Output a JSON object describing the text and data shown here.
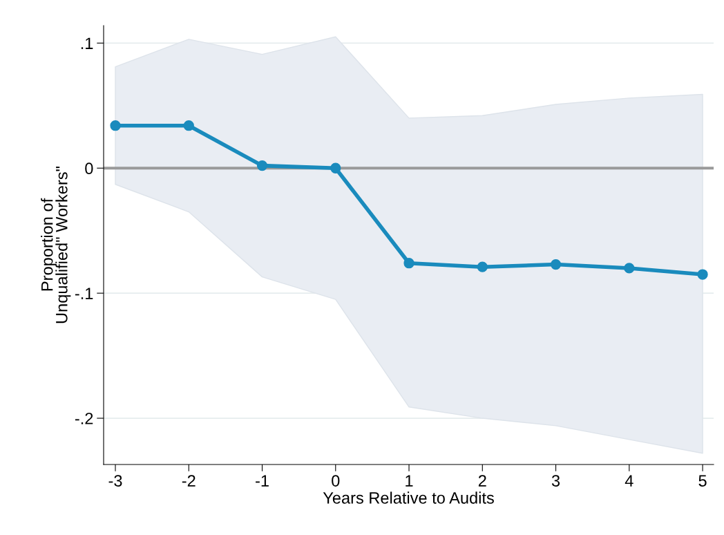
{
  "chart_data": {
    "type": "line",
    "xlabel": "Years Relative to Audits",
    "ylabel": "Proportion of\nUnqualified\" Workers\"",
    "x": [
      -3,
      -2,
      -1,
      0,
      1,
      2,
      3,
      4,
      5
    ],
    "series": [
      {
        "color": "#1a8bbd",
        "values": [
          0.034,
          0.034,
          0.002,
          0,
          -0.076,
          -0.079,
          -0.077,
          -0.08,
          -0.085
        ],
        "lower": [
          -0.013,
          -0.035,
          -0.087,
          -0.105,
          -0.191,
          -0.2,
          -0.206,
          -0.217,
          -0.228
        ],
        "upper": [
          0.081,
          0.103,
          0.091,
          0.105,
          0.04,
          0.042,
          0.051,
          0.056,
          0.059
        ]
      }
    ],
    "xlim": [
      -3.16,
      5.15
    ],
    "ylim": [
      -0.237,
      0.114
    ],
    "xticks": [
      -3,
      -2,
      -1,
      0,
      1,
      2,
      3,
      4,
      5
    ],
    "yticks": [
      {
        "value": -0.2,
        "label": "-.2"
      },
      {
        "value": -0.1,
        "label": "-.1"
      },
      {
        "value": 0,
        "label": "0"
      },
      {
        "value": 0.1,
        "label": ".1"
      }
    ],
    "ref_lines": [
      {
        "axis": "y",
        "value": 0,
        "label": null,
        "color": "#9a9a9a"
      }
    ],
    "grid": "y",
    "marker": "circle",
    "line_style": "solid"
  }
}
